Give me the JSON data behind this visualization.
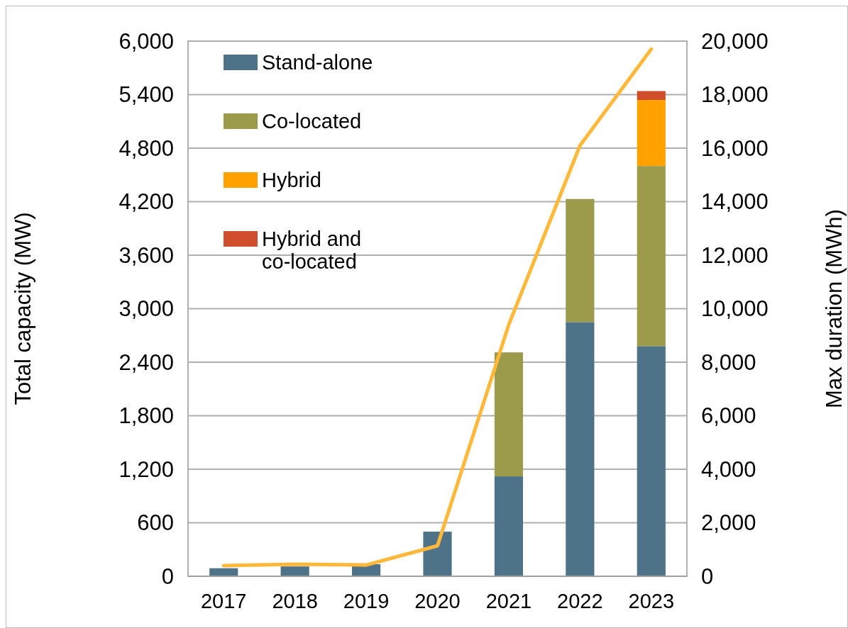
{
  "chart_data": {
    "type": "bar",
    "stacked": true,
    "categories": [
      "2017",
      "2018",
      "2019",
      "2020",
      "2021",
      "2022",
      "2023"
    ],
    "ylabel": "Total capacity (MW)",
    "y2label": "Max duration (MWh)",
    "series": [
      {
        "name": "Stand-alone",
        "color": "#4e7388",
        "values": [
          90,
          110,
          135,
          500,
          1120,
          2850,
          2580
        ]
      },
      {
        "name": "Co-located",
        "color": "#9b9b4b",
        "values": [
          0,
          0,
          0,
          0,
          1390,
          1380,
          2020
        ]
      },
      {
        "name": "Hybrid",
        "color": "#ffa200",
        "values": [
          0,
          0,
          0,
          0,
          0,
          0,
          740
        ]
      },
      {
        "name": "Hybrid and co-located",
        "color": "#cf4e2b",
        "values": [
          0,
          0,
          0,
          0,
          0,
          0,
          100
        ]
      },
      {
        "type": "line",
        "axis": "y2",
        "color": "#ffb83a",
        "values": [
          400,
          450,
          420,
          1140,
          9400,
          16100,
          19700
        ]
      }
    ],
    "ylim": [
      0,
      6000
    ],
    "yticks": [
      {
        "value": 0,
        "label": "0"
      },
      {
        "value": 600,
        "label": "600"
      },
      {
        "value": 1200,
        "label": "1,200"
      },
      {
        "value": 1800,
        "label": "1,800"
      },
      {
        "value": 2400,
        "label": "2,400"
      },
      {
        "value": 3000,
        "label": "3,000"
      },
      {
        "value": 3600,
        "label": "3,600"
      },
      {
        "value": 4200,
        "label": "4,200"
      },
      {
        "value": 4800,
        "label": "4,800"
      },
      {
        "value": 5400,
        "label": "5,400"
      },
      {
        "value": 6000,
        "label": "6,000"
      }
    ],
    "y2lim": [
      0,
      20000
    ],
    "y2ticks": [
      {
        "value": 0,
        "label": "0"
      },
      {
        "value": 2000,
        "label": "2,000"
      },
      {
        "value": 4000,
        "label": "4,000"
      },
      {
        "value": 6000,
        "label": "6,000"
      },
      {
        "value": 8000,
        "label": "8,000"
      },
      {
        "value": 10000,
        "label": "10,000"
      },
      {
        "value": 12000,
        "label": "12,000"
      },
      {
        "value": 14000,
        "label": "14,000"
      },
      {
        "value": 16000,
        "label": "16,000"
      },
      {
        "value": 18000,
        "label": "18,000"
      },
      {
        "value": 20000,
        "label": "20,000"
      }
    ],
    "grid": "y",
    "legend": "top left"
  }
}
